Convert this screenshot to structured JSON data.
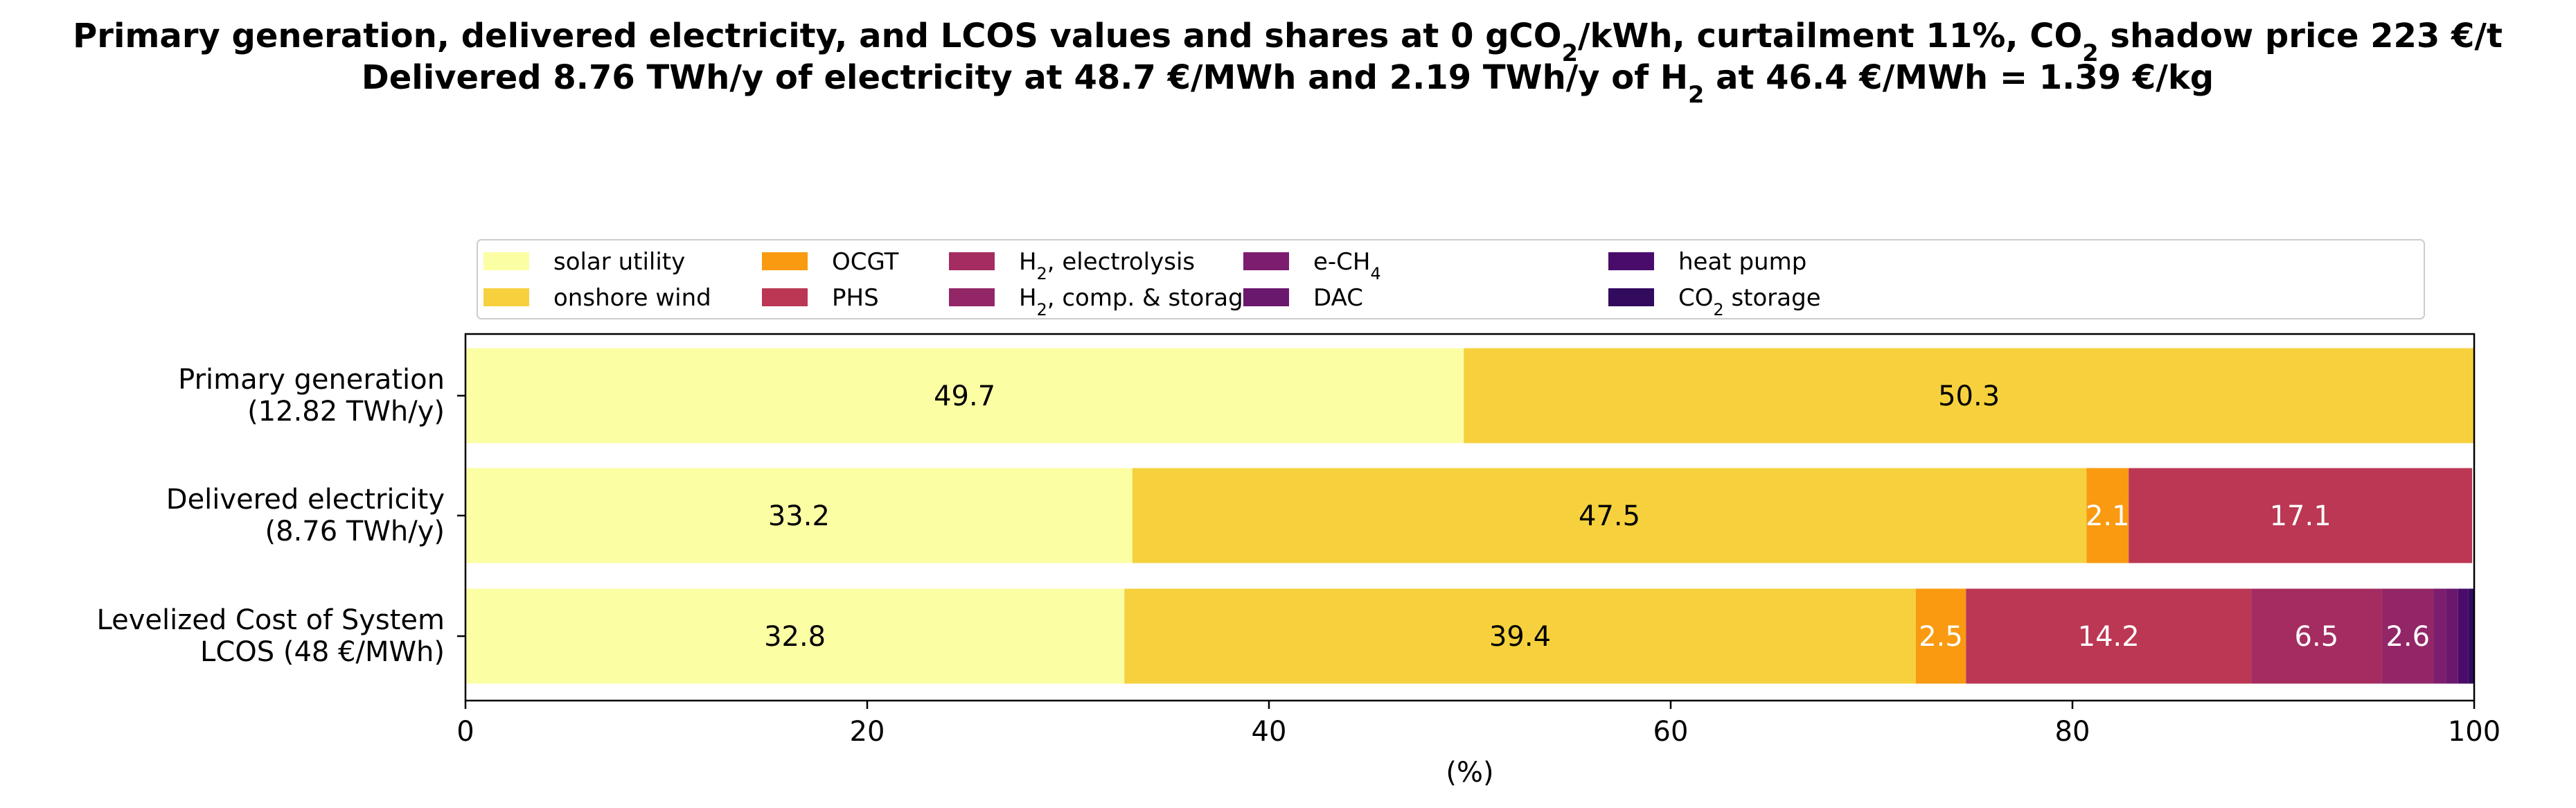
{
  "chart_data": {
    "type": "bar",
    "orientation": "horizontal",
    "stacked": true,
    "title_lines": [
      [
        {
          "t": "Primary generation, delivered electricity, and LCOS values and shares at 0 gCO"
        },
        {
          "t": "2",
          "sub": true
        },
        {
          "t": "/kWh, curtailment 11%, CO"
        },
        {
          "t": "2",
          "sub": true
        },
        {
          "t": " shadow price 223 €/t"
        }
      ],
      [
        {
          "t": "Delivered 8.76 TWh/y of electricity at 48.7 €/MWh and 2.19 TWh/y of H"
        },
        {
          "t": "2",
          "sub": true
        },
        {
          "t": " at 46.4 €/MWh = 1.39 €/kg"
        }
      ]
    ],
    "xlabel": "(%)",
    "xlim": [
      0,
      100
    ],
    "xticks": [
      0,
      20,
      40,
      60,
      80,
      100
    ],
    "legend_position": "top",
    "categories": [
      [
        "Primary generation",
        "(12.82 TWh/y)"
      ],
      [
        "Delivered electricity",
        "(8.76 TWh/y)"
      ],
      [
        "Levelized Cost of System",
        "LCOS  (48 €/MWh)"
      ]
    ],
    "series": [
      {
        "name": [
          {
            "t": "solar utility"
          }
        ],
        "color": "#fcfea4",
        "values": [
          49.7,
          33.2,
          32.8
        ],
        "labels": [
          "49.7",
          "33.2",
          "32.8"
        ],
        "label_color": "#000000"
      },
      {
        "name": [
          {
            "t": "onshore wind"
          }
        ],
        "color": "#f6d13d",
        "values": [
          50.3,
          47.5,
          39.4
        ],
        "labels": [
          "50.3",
          "47.5",
          "39.4"
        ],
        "label_color": "#000000"
      },
      {
        "name": [
          {
            "t": "OCGT"
          }
        ],
        "color": "#f99a10",
        "values": [
          0,
          2.1,
          2.5
        ],
        "labels": [
          "",
          "2.1",
          "2.5"
        ],
        "label_color": "#ffffff"
      },
      {
        "name": [
          {
            "t": "PHS"
          }
        ],
        "color": "#bb3754",
        "values": [
          0,
          17.1,
          14.2
        ],
        "labels": [
          "",
          "17.1",
          "14.2"
        ],
        "label_color": "#ffffff"
      },
      {
        "name": [
          {
            "t": "H"
          },
          {
            "t": "2",
            "sub": true
          },
          {
            "t": ", electrolysis"
          }
        ],
        "color": "#a42c60",
        "values": [
          0,
          0,
          6.5
        ],
        "labels": [
          "",
          "",
          "6.5"
        ],
        "label_color": "#ffffff"
      },
      {
        "name": [
          {
            "t": "H"
          },
          {
            "t": "2",
            "sub": true
          },
          {
            "t": ", comp. & storage"
          }
        ],
        "color": "#932667",
        "values": [
          0,
          0,
          2.6
        ],
        "labels": [
          "",
          "",
          "2.6"
        ],
        "label_color": "#ffffff"
      },
      {
        "name": [
          {
            "t": "e-CH"
          },
          {
            "t": "4",
            "sub": true
          }
        ],
        "color": "#7c1d6f",
        "values": [
          0,
          0,
          0.6
        ],
        "labels": [
          "",
          "",
          ""
        ],
        "label_color": "#ffffff"
      },
      {
        "name": [
          {
            "t": "DAC"
          }
        ],
        "color": "#6a176e",
        "values": [
          0,
          0,
          0.6
        ],
        "labels": [
          "",
          "",
          ""
        ],
        "label_color": "#ffffff"
      },
      {
        "name": [
          {
            "t": "heat pump"
          }
        ],
        "color": "#4a0c6b",
        "values": [
          0,
          0,
          0.5
        ],
        "labels": [
          "",
          "",
          ""
        ],
        "label_color": "#ffffff"
      },
      {
        "name": [
          {
            "t": "CO"
          },
          {
            "t": "2",
            "sub": true
          },
          {
            "t": " storage"
          }
        ],
        "color": "#320a5e",
        "values": [
          0,
          0,
          0.3
        ],
        "labels": [
          "",
          "",
          ""
        ],
        "label_color": "#ffffff"
      }
    ]
  }
}
